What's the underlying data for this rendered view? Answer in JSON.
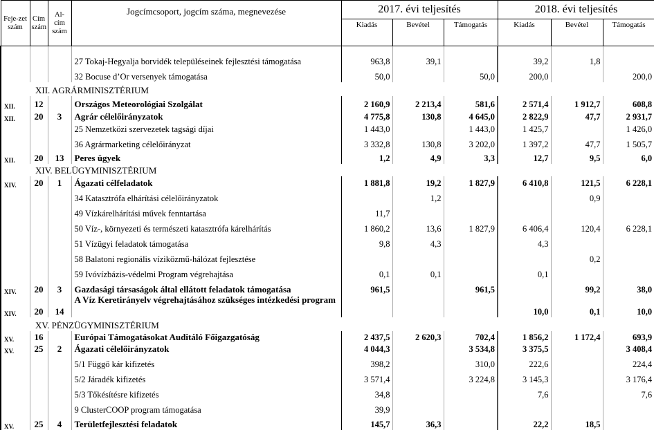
{
  "header": {
    "col_fejezet": "Feje-zet szám",
    "col_cim": "Cím szám",
    "col_alcim": "Al-cím szám",
    "col_name": "Jogcímcsoport, jogcím száma, megnevezése",
    "year_2017": "2017. évi teljesítés",
    "year_2018": "2018. évi teljesítés",
    "sub_kiadas": "Kiadás",
    "sub_bevetel": "Bevétel",
    "sub_tamogatas": "Támogatás"
  },
  "rows": [
    {
      "type": "normal",
      "f": "",
      "c": "",
      "a": "",
      "name": "27 Tokaj-Hegyalja borvidék településeinek fejlesztési támogatása",
      "v": [
        "963,8",
        "39,1",
        "",
        "39,2",
        "1,8",
        ""
      ]
    },
    {
      "type": "normal",
      "f": "",
      "c": "",
      "a": "",
      "name": "32 Bocuse d’Or versenyek támogatása",
      "v": [
        "50,0",
        "",
        "50,0",
        "200,0",
        "",
        "200,0"
      ]
    },
    {
      "type": "section",
      "name": "XII. AGRÁRMINISZTÉRIUM"
    },
    {
      "type": "bold",
      "f": "XII.",
      "c": "12",
      "a": "",
      "name": "Országos Meteorológiai Szolgálat",
      "v": [
        "2 160,9",
        "2 213,4",
        "581,6",
        "2 571,4",
        "1 912,7",
        "608,8"
      ]
    },
    {
      "type": "bold",
      "f": "XII.",
      "c": "20",
      "a": "3",
      "name": "Agrár célelőirányzatok",
      "v": [
        "4 775,8",
        "130,8",
        "4 645,0",
        "2 822,9",
        "47,7",
        "2 931,7"
      ]
    },
    {
      "type": "normal",
      "f": "",
      "c": "",
      "a": "",
      "name": "25 Nemzetközi szervezetek tagsági díjai",
      "v": [
        "1 443,0",
        "",
        "1 443,0",
        "1 425,7",
        "",
        "1 426,0"
      ]
    },
    {
      "type": "normal",
      "f": "",
      "c": "",
      "a": "",
      "name": "36 Agrármarketing célelőirányzat",
      "v": [
        "3 332,8",
        "130,8",
        "3 202,0",
        "1 397,2",
        "47,7",
        "1 505,7"
      ]
    },
    {
      "type": "bold",
      "f": "XII.",
      "c": "20",
      "a": "13",
      "name": "Peres ügyek",
      "v": [
        "1,2",
        "4,9",
        "3,3",
        "12,7",
        "9,5",
        "6,0"
      ]
    },
    {
      "type": "section",
      "name": "XIV. BELÜGYMINISZTÉRIUM"
    },
    {
      "type": "bold",
      "f": "XIV.",
      "c": "20",
      "a": "1",
      "name": "Ágazati célfeladatok",
      "v": [
        "1 881,8",
        "19,2",
        "1 827,9",
        "6 410,8",
        "121,5",
        "6 228,1"
      ]
    },
    {
      "type": "normal",
      "f": "",
      "c": "",
      "a": "",
      "name": "34 Katasztrófa elhárítási célelőirányzatok",
      "v": [
        "",
        "1,2",
        "",
        "",
        "0,9",
        ""
      ]
    },
    {
      "type": "normal",
      "f": "",
      "c": "",
      "a": "",
      "name": "49 Vízkárelhárítási művek fenntartása",
      "v": [
        "11,7",
        "",
        "",
        "",
        "",
        ""
      ]
    },
    {
      "type": "normal",
      "f": "",
      "c": "",
      "a": "",
      "name": "50 Víz-, környezeti és természeti katasztrófa kárelhárítás",
      "v": [
        "1 860,2",
        "13,6",
        "1 827,9",
        "6 406,4",
        "120,4",
        "6 228,1"
      ]
    },
    {
      "type": "normal",
      "f": "",
      "c": "",
      "a": "",
      "name": "51 Vízügyi feladatok támogatása",
      "v": [
        "9,8",
        "4,3",
        "",
        "4,3",
        "",
        ""
      ]
    },
    {
      "type": "normal",
      "f": "",
      "c": "",
      "a": "",
      "name": "58 Balatoni regionális víziközmű-hálózat fejlesztése",
      "v": [
        "",
        "",
        "",
        "",
        "0,2",
        ""
      ]
    },
    {
      "type": "normal",
      "f": "",
      "c": "",
      "a": "",
      "name": "59 Ivóvízbázis-védelmi Program végrehajtása",
      "v": [
        "0,1",
        "0,1",
        "",
        "0,1",
        "",
        ""
      ]
    },
    {
      "type": "bold",
      "f": "XIV.",
      "c": "20",
      "a": "3",
      "name": "Gazdasági társaságok által ellátott feladatok támogatása",
      "v": [
        "961,5",
        "",
        "961,5",
        "",
        "99,2",
        "38,0"
      ]
    },
    {
      "type": "bold",
      "f": "XIV.",
      "c": "20",
      "a": "14",
      "name": "A Víz Keretirányelv végrehajtásához szükséges intézkedési program",
      "v": [
        "",
        "",
        "",
        "10,0",
        "0,1",
        "10,0"
      ]
    },
    {
      "type": "section",
      "name": "XV. PÉNZÜGYMINISZTÉRIUM"
    },
    {
      "type": "bold",
      "f": "XV.",
      "c": "16",
      "a": "",
      "name": "Európai Támogatásokat Auditáló Főigazgatóság",
      "v": [
        "2 437,5",
        "2 620,3",
        "702,4",
        "1 856,2",
        "1 172,4",
        "693,9"
      ]
    },
    {
      "type": "bold",
      "f": "XV.",
      "c": "25",
      "a": "2",
      "name": "Ágazati célelőirányzatok",
      "v": [
        "4 044,3",
        "",
        "3 534,8",
        "3 375,5",
        "",
        "3 408,4"
      ]
    },
    {
      "type": "normal",
      "f": "",
      "c": "",
      "a": "",
      "name": "5/1 Függő kár kifizetés",
      "v": [
        "398,2",
        "",
        "310,0",
        "222,6",
        "",
        "224,4"
      ]
    },
    {
      "type": "normal",
      "f": "",
      "c": "",
      "a": "",
      "name": "5/2 Járadék kifizetés",
      "v": [
        "3 571,4",
        "",
        "3 224,8",
        "3 145,3",
        "",
        "3 176,4"
      ]
    },
    {
      "type": "normal",
      "f": "",
      "c": "",
      "a": "",
      "name": "5/3 Tőkésítésre kifizetés",
      "v": [
        "34,8",
        "",
        "",
        "7,6",
        "",
        "7,6"
      ]
    },
    {
      "type": "normal",
      "f": "",
      "c": "",
      "a": "",
      "name": "9 ClusterCOOP program támogatása",
      "v": [
        "39,9",
        "",
        "",
        "",
        "",
        ""
      ]
    },
    {
      "type": "bold",
      "f": "XV.",
      "c": "25",
      "a": "4",
      "name": "Területfejlesztési feladatok",
      "v": [
        "145,7",
        "36,3",
        "",
        "22,2",
        "18,5",
        ""
      ]
    }
  ]
}
